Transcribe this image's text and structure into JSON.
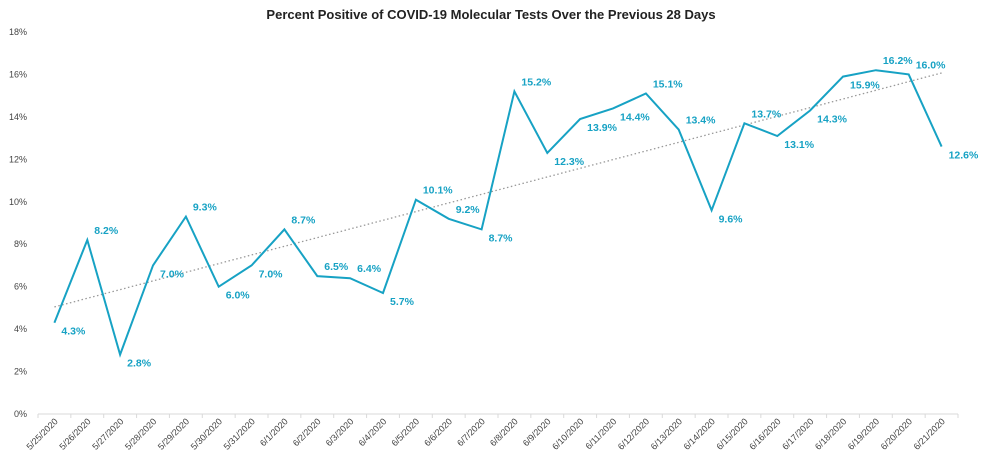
{
  "chart_data": {
    "type": "line",
    "title": "Percent Positive of COVID-19 Molecular Tests Over the Previous 28 Days",
    "xlabel": "",
    "ylabel": "",
    "categories": [
      "5/25/2020",
      "5/26/2020",
      "5/27/2020",
      "5/28/2020",
      "5/29/2020",
      "5/30/2020",
      "5/31/2020",
      "6/1/2020",
      "6/2/2020",
      "6/3/2020",
      "6/4/2020",
      "6/5/2020",
      "6/6/2020",
      "6/7/2020",
      "6/8/2020",
      "6/9/2020",
      "6/10/2020",
      "6/11/2020",
      "6/12/2020",
      "6/13/2020",
      "6/14/2020",
      "6/15/2020",
      "6/16/2020",
      "6/17/2020",
      "6/18/2020",
      "6/19/2020",
      "6/20/2020",
      "6/21/2020"
    ],
    "series": [
      {
        "values": [
          4.3,
          8.2,
          2.8,
          7.0,
          9.3,
          6.0,
          7.0,
          8.7,
          6.5,
          6.4,
          5.7,
          10.1,
          9.2,
          8.7,
          15.2,
          12.3,
          13.9,
          14.4,
          15.1,
          13.4,
          9.6,
          13.7,
          13.1,
          14.3,
          15.9,
          16.2,
          16.0,
          12.6
        ],
        "data_labels": [
          "4.3%",
          "8.2%",
          "2.8%",
          "7.0%",
          "9.3%",
          "6.0%",
          "7.0%",
          "8.7%",
          "6.5%",
          "6.4%",
          "5.7%",
          "10.1%",
          "9.2%",
          "8.7%",
          "15.2%",
          "12.3%",
          "13.9%",
          "14.4%",
          "15.1%",
          "13.4%",
          "9.6%",
          "13.7%",
          "13.1%",
          "14.3%",
          "15.9%",
          "16.2%",
          "16.0%",
          "12.6%"
        ]
      }
    ],
    "trendline": {
      "type": "linear",
      "style": "dotted"
    },
    "ylim": [
      0,
      18
    ],
    "yticks": [
      "0%",
      "2%",
      "4%",
      "6%",
      "8%",
      "10%",
      "12%",
      "14%",
      "16%",
      "18%"
    ],
    "grid": false,
    "legend": "none",
    "colors": {
      "line": "#17a2c4",
      "labels": "#17a2c4",
      "trend": "#999999",
      "axis": "#d9d9d9"
    }
  }
}
